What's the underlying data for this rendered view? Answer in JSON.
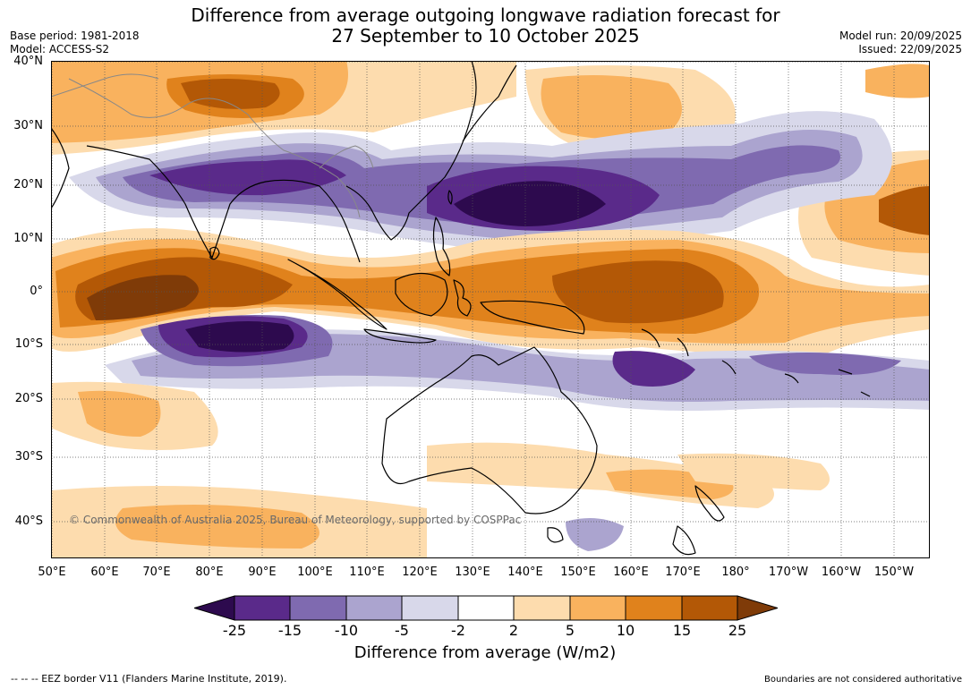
{
  "header": {
    "title_line1": "Difference from average outgoing longwave radiation forecast for",
    "title_line2": "27 September to 10 October 2025",
    "base_period": "Base period: 1981-2018",
    "model": "Model: ACCESS-S2",
    "model_run": "Model run: 20/09/2025",
    "issued": "Issued: 22/09/2025"
  },
  "map": {
    "lat_labels": [
      "40°N",
      "30°N",
      "20°N",
      "10°N",
      "0°",
      "10°S",
      "20°S",
      "30°S",
      "40°S"
    ],
    "lon_labels": [
      "50°E",
      "60°E",
      "70°E",
      "80°E",
      "90°E",
      "100°E",
      "110°E",
      "120°E",
      "130°E",
      "140°E",
      "150°E",
      "160°E",
      "170°E",
      "180°",
      "170°W",
      "160°W",
      "150°W"
    ],
    "copyright": "© Commonwealth of Australia 2025, Bureau of Meteorology, supported by COSPPac"
  },
  "colorbar": {
    "ticks": [
      "-25",
      "-15",
      "-10",
      "-5",
      "-2",
      "2",
      "5",
      "10",
      "15",
      "25"
    ],
    "title": "Difference from average (W/m2)",
    "colors": [
      "#2d0a4e",
      "#5a2a8a",
      "#7f6ab0",
      "#aba4cf",
      "#d8d8ea",
      "#ffffff",
      "#fddcae",
      "#f9b25e",
      "#e0821c",
      "#b35806",
      "#7f3b08"
    ]
  },
  "footer": {
    "eez_note": "--  --  -- EEZ border V11 (Flanders Marine Institute, 2019).",
    "boundaries_note": "Boundaries are not considered authoritative"
  }
}
